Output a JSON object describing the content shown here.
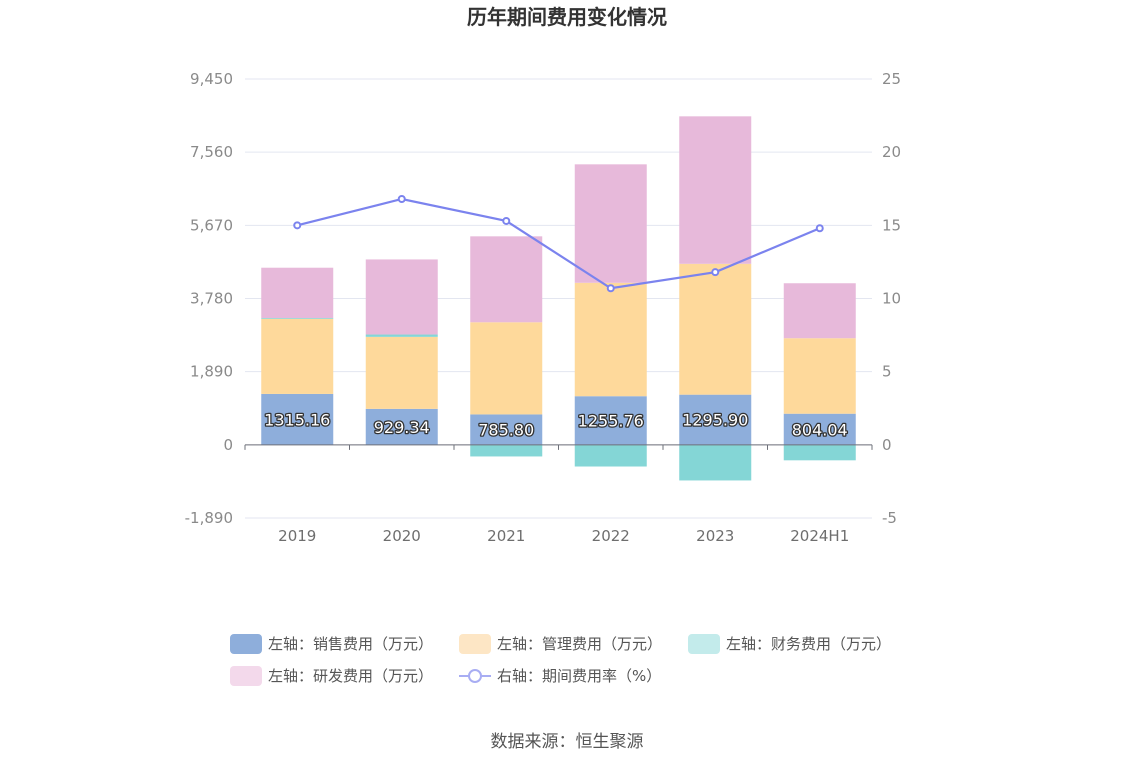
{
  "chart_data": {
    "type": "bar",
    "title": "历年期间费用变化情况",
    "categories": [
      "2019",
      "2020",
      "2021",
      "2022",
      "2023",
      "2024H1"
    ],
    "left_axis": {
      "ticks": [
        "9,450",
        "7,560",
        "5,670",
        "3,780",
        "1,890",
        "0",
        "-1,890"
      ],
      "ylim": [
        -1890,
        9450
      ]
    },
    "right_axis": {
      "ticks": [
        "25",
        "20",
        "15",
        "10",
        "5",
        "0",
        "-5"
      ],
      "ylim": [
        -5,
        25
      ]
    },
    "series": [
      {
        "name": "左轴：销售费用（万元）",
        "axis": "left",
        "color": "#8eaedb",
        "values": [
          1315.16,
          929.34,
          785.8,
          1255.76,
          1295.9,
          804.04
        ],
        "labels": [
          "1315.16",
          "929.34",
          "785.80",
          "1255.76",
          "1295.90",
          "804.04"
        ]
      },
      {
        "name": "左轴：管理费用（万元）",
        "axis": "left",
        "color": "#fed99b",
        "values": [
          1940,
          1860,
          2380,
          2930,
          3380,
          1950
        ]
      },
      {
        "name": "左轴：财务费用（万元）",
        "axis": "left",
        "color": "#84d6d6",
        "values": [
          20,
          60,
          -300,
          -560,
          -920,
          -400
        ]
      },
      {
        "name": "左轴：研发费用（万元）",
        "axis": "left",
        "color": "#e7b9da",
        "values": [
          1300,
          1940,
          2220,
          3060,
          3810,
          1420
        ]
      },
      {
        "name": "右轴：期间费用率（%）",
        "axis": "right",
        "type": "line",
        "color": "#7b83ee",
        "values": [
          15.0,
          16.8,
          15.3,
          10.7,
          11.8,
          14.8
        ]
      }
    ]
  },
  "legend": [
    {
      "label": "左轴：销售费用（万元）",
      "color": "#8eaedb",
      "kind": "box"
    },
    {
      "label": "左轴：管理费用（万元）",
      "color": "#fde6c5",
      "kind": "box"
    },
    {
      "label": "左轴：财务费用（万元）",
      "color": "#c3ebeb",
      "kind": "box"
    },
    {
      "label": "左轴：研发费用（万元）",
      "color": "#f3d9eb",
      "kind": "box"
    },
    {
      "label": "右轴：期间费用率（%）",
      "color": "#a8adf3",
      "kind": "line"
    }
  ],
  "source": "数据来源：恒生聚源"
}
